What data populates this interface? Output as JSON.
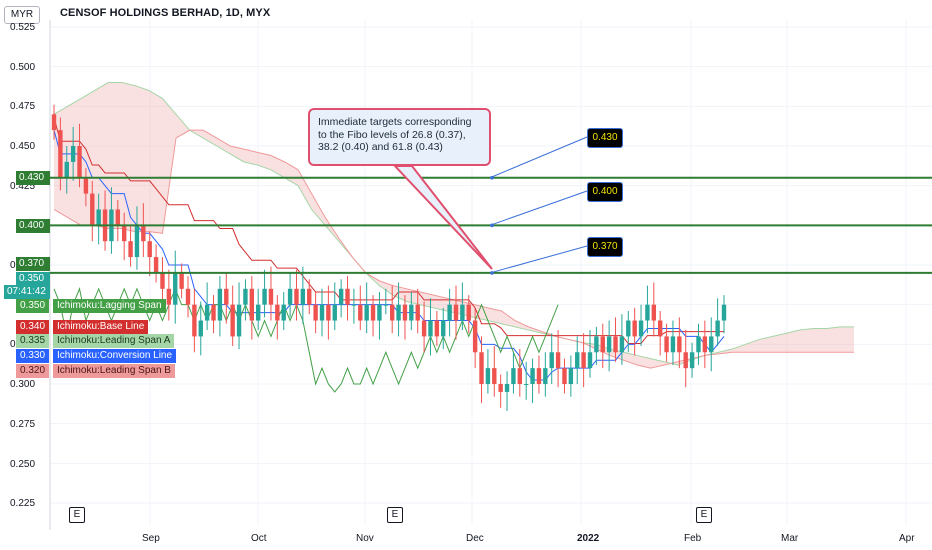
{
  "header": {
    "currency": "MYR",
    "title": "CENSOF HOLDINGS BERHAD, 1D, MYX"
  },
  "annotation": {
    "text": "Immediate targets corresponding to the Fibo levels of 26.8 (0.37), 38.2 (0.40) and 61.8 (0.43)"
  },
  "fibo_labels": [
    "0.430",
    "0.400",
    "0.370"
  ],
  "price_badges": {
    "l430": "0.430",
    "l400": "0.400",
    "l370": "0.370",
    "current_price": "0.350",
    "countdown": "07:41:42"
  },
  "legend": [
    {
      "value": "0.350",
      "name": "Ichimoku:Lagging Span",
      "color": "#43a047"
    },
    {
      "value": "0.340",
      "name": "Ichimoku:Base Line",
      "color": "#d32f2f"
    },
    {
      "value": "0.335",
      "name": "Ichimoku:Leading Span A",
      "color": "#a5d6a7"
    },
    {
      "value": "0.330",
      "name": "Ichimoku:Conversion Line",
      "color": "#2962ff"
    },
    {
      "value": "0.320",
      "name": "Ichimoku:Leading Span B",
      "color": "#ef9a9a"
    }
  ],
  "earnings_marker": "E",
  "x_labels": [
    "Sep",
    "Oct",
    "Nov",
    "Dec",
    "2022",
    "Feb",
    "Mar",
    "Apr"
  ],
  "y_labels": [
    "0.525",
    "0.500",
    "0.475",
    "0.450",
    "0.425",
    "0.375",
    "0.325",
    "0.300",
    "0.275",
    "0.250",
    "0.225"
  ],
  "colors": {
    "up": "#26a69a",
    "down": "#ef5350",
    "fibo_line": "#2e7d32",
    "accent": "#e0506e"
  },
  "chart_data": {
    "type": "candlestick",
    "title": "CENSOF HOLDINGS BERHAD, 1D, MYX",
    "ylim": [
      0.225,
      0.525
    ],
    "x_ticks": [
      "Sep",
      "Oct",
      "Nov",
      "Dec",
      "2022",
      "Feb",
      "Mar",
      "Apr"
    ],
    "horizontal_levels": [
      0.43,
      0.4,
      0.37
    ],
    "closes": [
      0.46,
      0.43,
      0.44,
      0.45,
      0.43,
      0.42,
      0.4,
      0.41,
      0.39,
      0.41,
      0.4,
      0.39,
      0.38,
      0.4,
      0.39,
      0.38,
      0.37,
      0.36,
      0.35,
      0.37,
      0.36,
      0.35,
      0.33,
      0.34,
      0.35,
      0.34,
      0.36,
      0.35,
      0.33,
      0.35,
      0.36,
      0.34,
      0.35,
      0.36,
      0.35,
      0.34,
      0.35,
      0.36,
      0.35,
      0.36,
      0.35,
      0.34,
      0.35,
      0.34,
      0.35,
      0.36,
      0.35,
      0.35,
      0.34,
      0.35,
      0.34,
      0.35,
      0.35,
      0.34,
      0.35,
      0.34,
      0.35,
      0.34,
      0.33,
      0.34,
      0.33,
      0.34,
      0.35,
      0.34,
      0.35,
      0.34,
      0.32,
      0.3,
      0.31,
      0.3,
      0.295,
      0.3,
      0.31,
      0.3,
      0.3,
      0.31,
      0.3,
      0.31,
      0.32,
      0.31,
      0.3,
      0.31,
      0.32,
      0.31,
      0.32,
      0.33,
      0.32,
      0.33,
      0.32,
      0.33,
      0.34,
      0.33,
      0.34,
      0.35,
      0.34,
      0.33,
      0.32,
      0.33,
      0.32,
      0.31,
      0.32,
      0.33,
      0.32,
      0.33,
      0.34,
      0.35
    ]
  }
}
